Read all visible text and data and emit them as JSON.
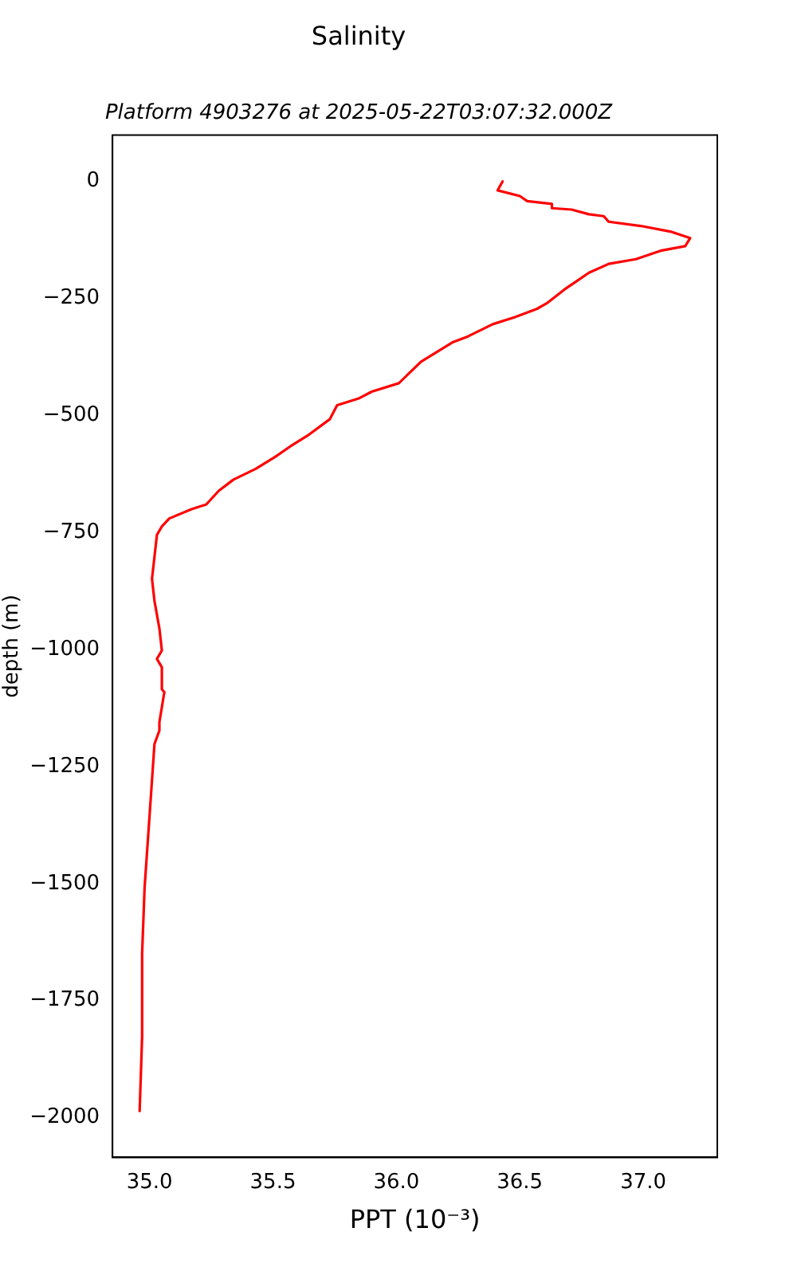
{
  "chart_data": {
    "type": "line",
    "title": "Salinity",
    "subtitle": "Platform 4903276 at 2025-05-22T03:07:32.000Z",
    "xlabel": "PPT (10⁻³)",
    "ylabel": "depth (m)",
    "series": [
      {
        "color": "#ff0000",
        "x": [
          36.43,
          36.41,
          36.5,
          36.53,
          36.63,
          36.63,
          36.71,
          36.78,
          36.84,
          36.86,
          36.99,
          37.11,
          37.19,
          37.17,
          37.07,
          36.97,
          36.86,
          36.78,
          36.73,
          36.68,
          36.61,
          36.57,
          36.48,
          36.39,
          36.29,
          36.23,
          36.1,
          36.01,
          35.9,
          35.85,
          35.76,
          35.73,
          35.64,
          35.57,
          35.51,
          35.43,
          35.34,
          35.28,
          35.23,
          35.17,
          35.08,
          35.05,
          35.03,
          35.02,
          35.01,
          35.02,
          35.04,
          35.05,
          35.03,
          35.05,
          35.05,
          35.06,
          35.04,
          35.04,
          35.02,
          35.0,
          34.98,
          34.97,
          34.97,
          34.96
        ],
        "values": [
          0,
          -19,
          -31,
          -42,
          -48,
          -57,
          -60,
          -70,
          -74,
          -86,
          -95,
          -107,
          -121,
          -138,
          -148,
          -166,
          -176,
          -195,
          -213,
          -231,
          -260,
          -272,
          -290,
          -305,
          -331,
          -343,
          -385,
          -431,
          -449,
          -463,
          -478,
          -508,
          -543,
          -566,
          -588,
          -614,
          -637,
          -661,
          -690,
          -700,
          -720,
          -737,
          -755,
          -802,
          -849,
          -896,
          -955,
          -1002,
          -1020,
          -1038,
          -1085,
          -1091,
          -1155,
          -1173,
          -1202,
          -1356,
          -1509,
          -1650,
          -1827,
          -1986
        ]
      }
    ],
    "xlim": [
      34.85,
      37.3
    ],
    "ylim": [
      -2085,
      99
    ],
    "xticks": [
      {
        "value": 35,
        "label": "35.0"
      },
      {
        "value": 35.5,
        "label": "35.5"
      },
      {
        "value": 36,
        "label": "36.0"
      },
      {
        "value": 36.5,
        "label": "36.5"
      },
      {
        "value": 37,
        "label": "37.0"
      }
    ],
    "yticks": [
      {
        "value": -2000,
        "label": "−2000"
      },
      {
        "value": -1750,
        "label": "−1750"
      },
      {
        "value": -1500,
        "label": "−1500"
      },
      {
        "value": -1250,
        "label": "−1250"
      },
      {
        "value": -1000,
        "label": "−1000"
      },
      {
        "value": -750,
        "label": "−750"
      },
      {
        "value": -500,
        "label": "−500"
      },
      {
        "value": -250,
        "label": "−250"
      },
      0
    ],
    "grid": false,
    "legend": false,
    "marker": "none",
    "line_style": "solid"
  }
}
